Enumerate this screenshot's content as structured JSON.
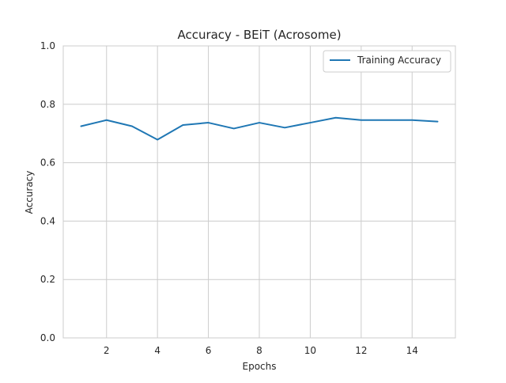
{
  "chart_data": {
    "type": "line",
    "title": "Accuracy - BEiT (Acrosome)",
    "xlabel": "Epochs",
    "ylabel": "Accuracy",
    "xlim": [
      0.3,
      15.7
    ],
    "ylim": [
      0.0,
      1.0
    ],
    "xticks": [
      2,
      4,
      6,
      8,
      10,
      12,
      14
    ],
    "yticks": [
      0.0,
      0.2,
      0.4,
      0.6,
      0.8,
      1.0
    ],
    "xtick_labels": [
      "2",
      "4",
      "6",
      "8",
      "10",
      "12",
      "14"
    ],
    "ytick_labels": [
      "0.0",
      "0.2",
      "0.4",
      "0.6",
      "0.8",
      "1.0"
    ],
    "grid": true,
    "legend_position": "top-right",
    "series": [
      {
        "name": "Training Accuracy",
        "color": "#1f77b4",
        "x": [
          1,
          2,
          3,
          4,
          5,
          6,
          7,
          8,
          9,
          10,
          11,
          12,
          13,
          14,
          15
        ],
        "y": [
          0.725,
          0.746,
          0.725,
          0.679,
          0.729,
          0.737,
          0.717,
          0.737,
          0.72,
          0.737,
          0.754,
          0.746,
          0.746,
          0.746,
          0.741
        ]
      }
    ]
  }
}
